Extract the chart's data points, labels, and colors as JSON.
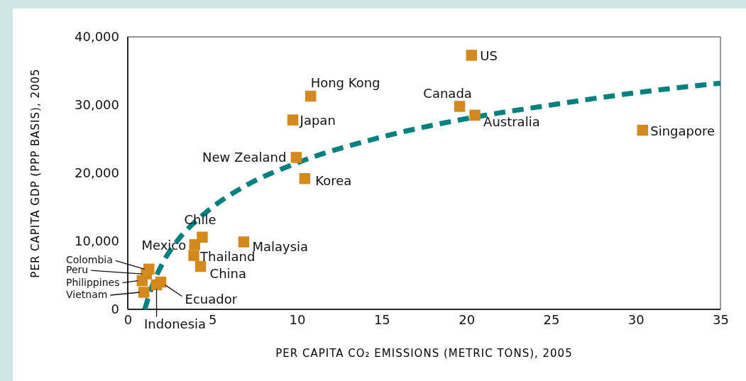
{
  "chart_data": {
    "type": "scatter",
    "xlabel": "PER CAPITA CO₂ EMISSIONS (METRIC TONS), 2005",
    "ylabel": "PER CAPITA GDP (PPP BASIS), 2005",
    "xlim": [
      0,
      35
    ],
    "xticks": [
      0,
      5,
      10,
      15,
      20,
      25,
      30,
      35
    ],
    "ylim": [
      0,
      40000
    ],
    "yticks": [
      0,
      {
        "value": 10000,
        "label": "10,000"
      },
      {
        "value": 20000,
        "label": "20,000"
      },
      {
        "value": 30000,
        "label": "30,000"
      },
      {
        "value": 40000,
        "label": "40,000"
      }
    ],
    "grid": false,
    "series": [
      {
        "marker": "square",
        "color": "#d4891e",
        "x": [
          20.3,
          10.8,
          9.75,
          19.6,
          20.5,
          30.4,
          9.95,
          10.45,
          4.4,
          3.95,
          3.9,
          4.3,
          6.85,
          1.25,
          1.1,
          0.85,
          0.95,
          1.7,
          1.95
        ],
        "values": [
          37300,
          31300,
          27800,
          29800,
          28500,
          26300,
          22300,
          19200,
          10600,
          9500,
          7900,
          6300,
          9900,
          5900,
          5200,
          4200,
          2500,
          3600,
          4000
        ]
      },
      {
        "type": "line",
        "marker": "none",
        "line_style": "dashed",
        "color": "#00807f",
        "x": [
          1,
          1.5,
          2,
          3,
          4,
          5,
          7,
          10,
          15,
          20,
          25,
          30,
          35
        ],
        "values": [
          0,
          3800,
          6500,
          10300,
          12900,
          15000,
          18200,
          21500,
          25300,
          28000,
          30000,
          31800,
          33200
        ]
      }
    ],
    "annotations": [
      {
        "text": "US",
        "x": 20.3,
        "y": 37300
      },
      {
        "text": "Hong Kong",
        "x": 10.8,
        "y": 31300
      },
      {
        "text": "Japan",
        "x": 9.75,
        "y": 27800
      },
      {
        "text": "Canada",
        "x": 19.6,
        "y": 29800
      },
      {
        "text": "Australia",
        "x": 20.5,
        "y": 28500
      },
      {
        "text": "Singapore",
        "x": 30.4,
        "y": 26300
      },
      {
        "text": "New Zealand",
        "x": 9.95,
        "y": 22300
      },
      {
        "text": "Korea",
        "x": 10.45,
        "y": 19200
      },
      {
        "text": "Chile",
        "x": 4.4,
        "y": 10600
      },
      {
        "text": "Mexico",
        "x": 3.95,
        "y": 9500
      },
      {
        "text": "Thailand",
        "x": 3.9,
        "y": 7900
      },
      {
        "text": "China",
        "x": 4.3,
        "y": 6300
      },
      {
        "text": "Malaysia",
        "x": 6.85,
        "y": 9900
      },
      {
        "text": "Colombia",
        "x": 1.25,
        "y": 5900
      },
      {
        "text": "Peru",
        "x": 1.1,
        "y": 5200
      },
      {
        "text": "Philippines",
        "x": 0.85,
        "y": 4200
      },
      {
        "text": "Vietnam",
        "x": 0.95,
        "y": 2500
      },
      {
        "text": "Indonesia",
        "x": 1.7,
        "y": 3600
      },
      {
        "text": "Ecuador",
        "x": 1.95,
        "y": 4000
      }
    ]
  }
}
